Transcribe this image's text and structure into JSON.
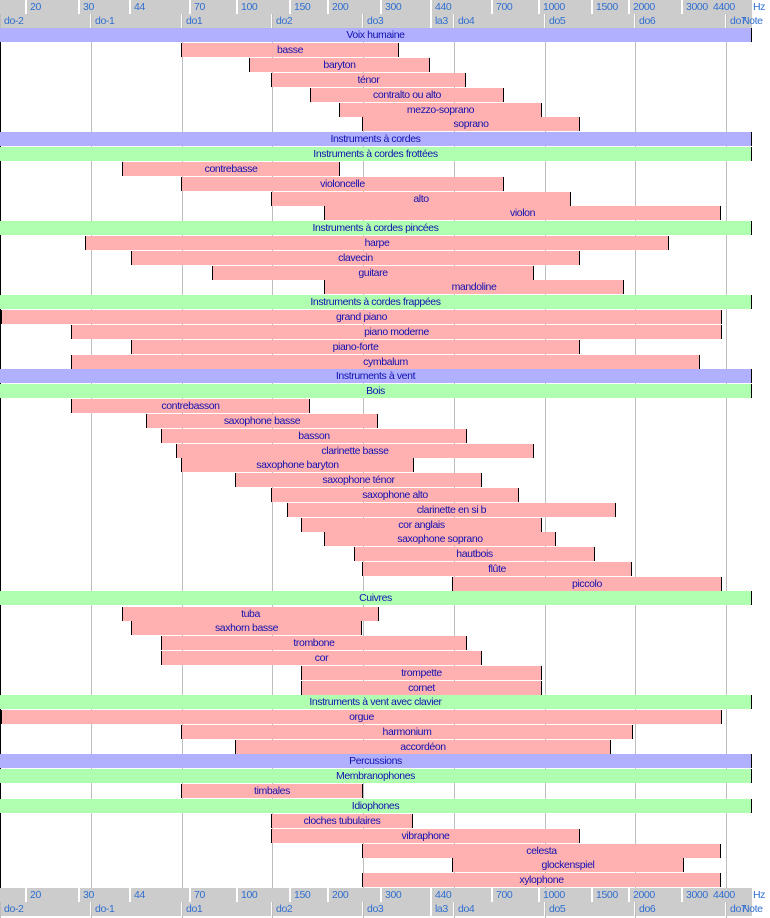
{
  "chart_data": {
    "type": "bar",
    "orientation": "horizontal-range",
    "title": "",
    "x_scale": "log2 (octaves)",
    "hz_axis": {
      "unit_label": "Hz",
      "ticks": [
        {
          "label": "20",
          "hz": 20
        },
        {
          "label": "30",
          "hz": 30
        },
        {
          "label": "44",
          "hz": 44
        },
        {
          "label": "70",
          "hz": 70
        },
        {
          "label": "100",
          "hz": 100
        },
        {
          "label": "150",
          "hz": 150
        },
        {
          "label": "200",
          "hz": 200
        },
        {
          "label": "300",
          "hz": 300
        },
        {
          "label": "440",
          "hz": 440
        },
        {
          "label": "700",
          "hz": 700
        },
        {
          "label": "1000",
          "hz": 1000
        },
        {
          "label": "1500",
          "hz": 1500
        },
        {
          "label": "2000",
          "hz": 2000
        },
        {
          "label": "3000",
          "hz": 3000
        },
        {
          "label": "4400",
          "hz": 4400
        }
      ]
    },
    "note_axis": {
      "unit_label": "Note",
      "ticks": [
        {
          "label": "do-2",
          "octave": 0
        },
        {
          "label": "do-1",
          "octave": 1
        },
        {
          "label": "do1",
          "octave": 2
        },
        {
          "label": "do2",
          "octave": 3
        },
        {
          "label": "do3",
          "octave": 4
        },
        {
          "label": "la3",
          "octave": 4.75
        },
        {
          "label": "do4",
          "octave": 5
        },
        {
          "label": "do5",
          "octave": 6
        },
        {
          "label": "do6",
          "octave": 7
        },
        {
          "label": "do7",
          "octave": 8
        }
      ]
    },
    "range_octaves": [
      0,
      8.3
    ],
    "rows": [
      {
        "kind": "category",
        "level": 1,
        "label": "Voix humaine"
      },
      {
        "kind": "bar",
        "label": "basse",
        "start": 1.98,
        "end": 4.38
      },
      {
        "kind": "bar",
        "label": "baryton",
        "start": 2.73,
        "end": 4.72
      },
      {
        "kind": "bar",
        "label": "ténor",
        "start": 2.98,
        "end": 5.13
      },
      {
        "kind": "bar",
        "label": "contralto ou alto",
        "start": 3.4,
        "end": 5.54
      },
      {
        "kind": "bar",
        "label": "mezzo-soprano",
        "start": 3.73,
        "end": 5.97
      },
      {
        "kind": "bar",
        "label": "soprano",
        "start": 3.98,
        "end": 6.38
      },
      {
        "kind": "category",
        "level": 1,
        "label": "Instruments à cordes"
      },
      {
        "kind": "category",
        "level": 2,
        "label": "Instruments à cordes frottées"
      },
      {
        "kind": "bar",
        "label": "contrebasse",
        "start": 1.33,
        "end": 3.73
      },
      {
        "kind": "bar",
        "label": "violoncelle",
        "start": 1.98,
        "end": 5.54
      },
      {
        "kind": "bar",
        "label": "alto",
        "start": 2.98,
        "end": 6.29
      },
      {
        "kind": "bar",
        "label": "violon",
        "start": 3.56,
        "end": 7.94
      },
      {
        "kind": "category",
        "level": 2,
        "label": "Instruments à cordes pincées"
      },
      {
        "kind": "bar",
        "label": "harpe",
        "start": 0.93,
        "end": 7.36
      },
      {
        "kind": "bar",
        "label": "clavecin",
        "start": 1.43,
        "end": 6.38
      },
      {
        "kind": "bar",
        "label": "guitare",
        "start": 2.33,
        "end": 5.88
      },
      {
        "kind": "bar",
        "label": "mandoline",
        "start": 3.56,
        "end": 6.87
      },
      {
        "kind": "category",
        "level": 2,
        "label": "Instruments à cordes frappées"
      },
      {
        "kind": "bar",
        "label": "grand piano",
        "start": 0.0,
        "end": 7.94
      },
      {
        "kind": "bar",
        "label": "piano moderne",
        "start": 0.77,
        "end": 7.94
      },
      {
        "kind": "bar",
        "label": "piano-forte",
        "start": 1.43,
        "end": 6.38
      },
      {
        "kind": "bar",
        "label": "cymbalum",
        "start": 0.77,
        "end": 7.7
      },
      {
        "kind": "category",
        "level": 1,
        "label": "Instruments à vent"
      },
      {
        "kind": "category",
        "level": 2,
        "label": "Bois"
      },
      {
        "kind": "bar",
        "label": "contrebasson",
        "start": 0.77,
        "end": 3.4
      },
      {
        "kind": "bar",
        "label": "saxophone basse",
        "start": 1.6,
        "end": 4.16
      },
      {
        "kind": "bar",
        "label": "basson",
        "start": 1.76,
        "end": 5.13
      },
      {
        "kind": "bar",
        "label": "clarinette basse",
        "start": 1.93,
        "end": 5.88
      },
      {
        "kind": "bar",
        "label": "saxophone baryton",
        "start": 1.98,
        "end": 4.55
      },
      {
        "kind": "bar",
        "label": "saxophone ténor",
        "start": 2.58,
        "end": 5.3
      },
      {
        "kind": "bar",
        "label": "saxophone alto",
        "start": 2.98,
        "end": 5.71
      },
      {
        "kind": "bar",
        "label": "clarinette en si b",
        "start": 3.15,
        "end": 6.78
      },
      {
        "kind": "bar",
        "label": "cor anglais",
        "start": 3.31,
        "end": 5.97
      },
      {
        "kind": "bar",
        "label": "saxophone soprano",
        "start": 3.56,
        "end": 6.12
      },
      {
        "kind": "bar",
        "label": "hautbois",
        "start": 3.89,
        "end": 6.55
      },
      {
        "kind": "bar",
        "label": "flûte",
        "start": 3.98,
        "end": 6.96
      },
      {
        "kind": "bar",
        "label": "piccolo",
        "start": 4.97,
        "end": 7.94
      },
      {
        "kind": "category",
        "level": 2,
        "label": "Cuivres"
      },
      {
        "kind": "bar",
        "label": "tuba",
        "start": 1.33,
        "end": 4.16
      },
      {
        "kind": "bar",
        "label": "saxhorn basse",
        "start": 1.43,
        "end": 3.98
      },
      {
        "kind": "bar",
        "label": "trombone",
        "start": 1.76,
        "end": 5.13
      },
      {
        "kind": "bar",
        "label": "cor",
        "start": 1.76,
        "end": 5.3
      },
      {
        "kind": "bar",
        "label": "trompette",
        "start": 3.31,
        "end": 5.97
      },
      {
        "kind": "bar",
        "label": "cornet",
        "start": 3.31,
        "end": 5.97
      },
      {
        "kind": "category",
        "level": 2,
        "label": "Instruments à vent avec clavier"
      },
      {
        "kind": "bar",
        "label": "orgue",
        "start": 0.0,
        "end": 7.94
      },
      {
        "kind": "bar",
        "label": "harmonium",
        "start": 1.98,
        "end": 6.96
      },
      {
        "kind": "bar",
        "label": "accordéon",
        "start": 2.58,
        "end": 6.72
      },
      {
        "kind": "category",
        "level": 1,
        "label": "Percussions"
      },
      {
        "kind": "category",
        "level": 2,
        "label": "Membranophones"
      },
      {
        "kind": "bar",
        "label": "timbales",
        "start": 1.98,
        "end": 3.98
      },
      {
        "kind": "category",
        "level": 2,
        "label": "Idiophones"
      },
      {
        "kind": "bar",
        "label": "cloches tubulaires",
        "start": 2.98,
        "end": 4.55
      },
      {
        "kind": "bar",
        "label": "vibraphone",
        "start": 2.98,
        "end": 6.38
      },
      {
        "kind": "bar",
        "label": "celesta",
        "start": 3.98,
        "end": 7.94
      },
      {
        "kind": "bar",
        "label": "glockenspiel",
        "start": 4.97,
        "end": 7.53
      },
      {
        "kind": "bar",
        "label": "xylophone",
        "start": 3.98,
        "end": 7.94
      }
    ],
    "colors": {
      "category_level1": "#b0b0ff",
      "category_level2": "#b0ffb0",
      "bar_fill": "#ffb0b0",
      "text": "#1010b0",
      "axis_text": "#2f6fd0",
      "axis_bg": "#cccccc",
      "grid": "#bdbdbd"
    },
    "grid": true,
    "legend": "none"
  }
}
